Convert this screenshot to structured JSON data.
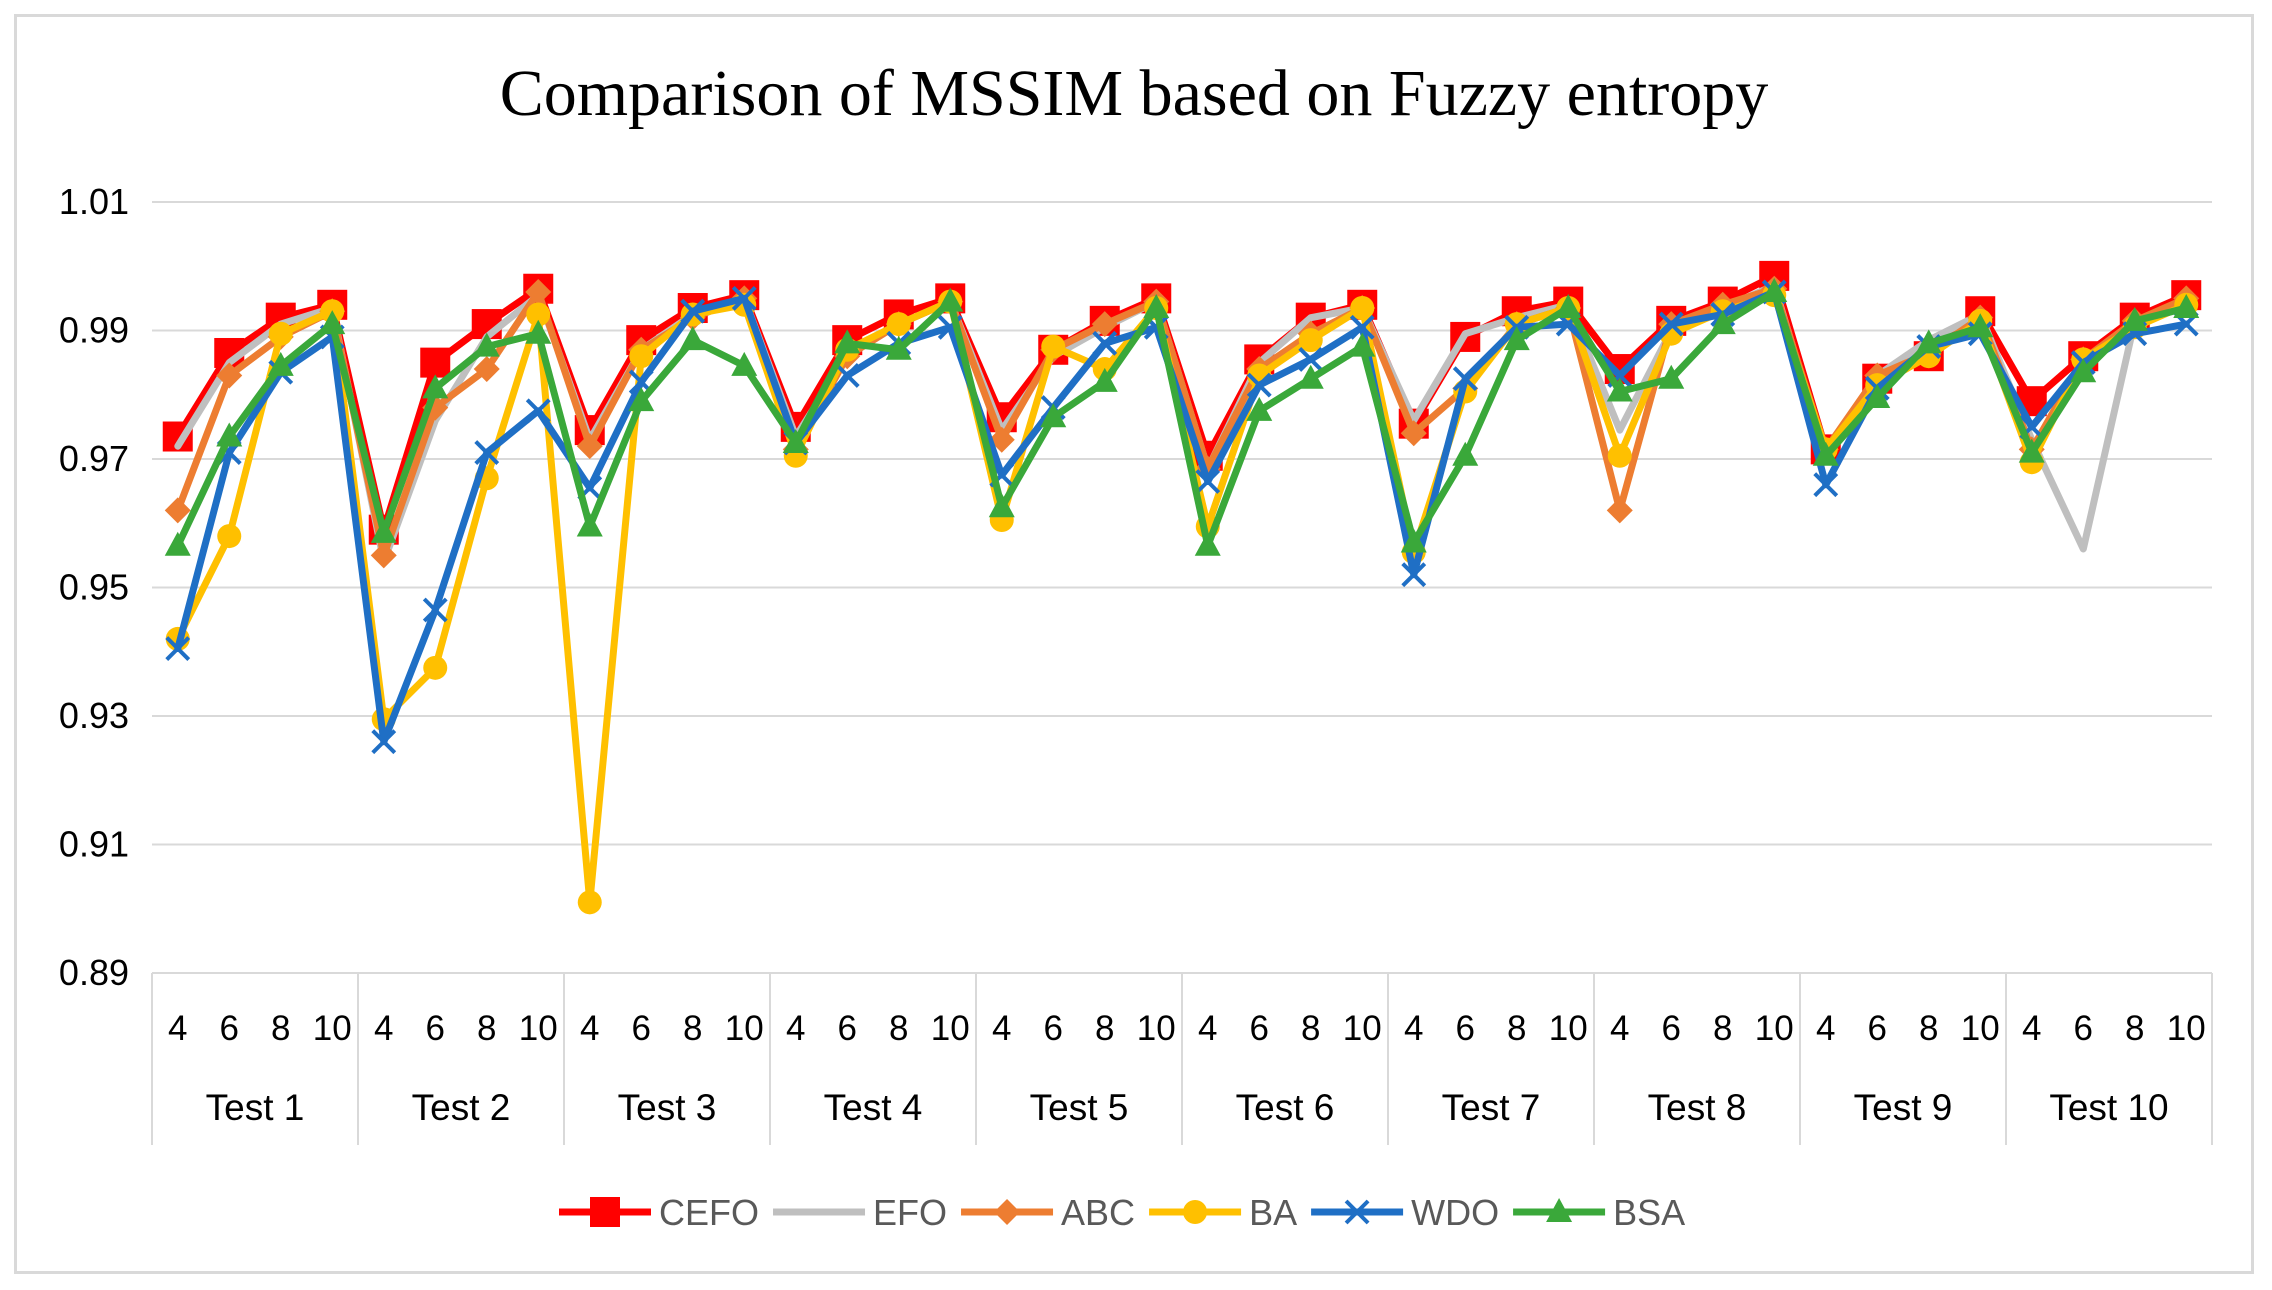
{
  "chart_data": {
    "type": "line",
    "title": "Comparison of MSSIM based on Fuzzy entropy",
    "xlabel": "",
    "ylabel": "",
    "ylim": [
      0.89,
      1.01
    ],
    "yticks": [
      "1.01",
      "0.99",
      "0.97",
      "0.95",
      "0.93",
      "0.91",
      "0.89"
    ],
    "yticks_values": [
      1.01,
      0.99,
      0.97,
      0.95,
      0.93,
      0.91,
      0.89
    ],
    "grid": true,
    "legend_position": "bottom",
    "groups": [
      "Test 1",
      "Test 2",
      "Test 3",
      "Test 4",
      "Test 5",
      "Test 6",
      "Test 7",
      "Test 8",
      "Test 9",
      "Test 10"
    ],
    "sub_categories": [
      "4",
      "6",
      "8",
      "10"
    ],
    "series": [
      {
        "name": "CEFO",
        "color": "#ff0000",
        "marker": "square",
        "values": [
          0.9735,
          0.9865,
          0.992,
          0.994,
          0.959,
          0.985,
          0.991,
          0.9965,
          0.9745,
          0.9885,
          0.9935,
          0.9955,
          0.975,
          0.9885,
          0.9925,
          0.995,
          0.9765,
          0.987,
          0.9915,
          0.995,
          0.9705,
          0.9855,
          0.992,
          0.994,
          0.9755,
          0.989,
          0.993,
          0.9945,
          0.984,
          0.9915,
          0.9945,
          0.9985,
          0.9715,
          0.9825,
          0.986,
          0.993,
          0.979,
          0.986,
          0.992,
          0.9955
        ]
      },
      {
        "name": "EFO",
        "color": "#bfbfbf",
        "marker": "none",
        "values": [
          0.972,
          0.985,
          0.991,
          0.9935,
          0.954,
          0.976,
          0.989,
          0.9955,
          0.973,
          0.987,
          0.9925,
          0.995,
          0.9735,
          0.986,
          0.991,
          0.9945,
          0.9745,
          0.986,
          0.9905,
          0.9945,
          0.9685,
          0.985,
          0.992,
          0.9935,
          0.976,
          0.9895,
          0.992,
          0.994,
          0.9745,
          0.99,
          0.9935,
          0.997,
          0.9705,
          0.983,
          0.9885,
          0.9925,
          0.973,
          0.956,
          0.9915,
          0.9945
        ]
      },
      {
        "name": "ABC",
        "color": "#ed7d31",
        "marker": "diamond",
        "values": [
          0.962,
          0.983,
          0.989,
          0.993,
          0.955,
          0.978,
          0.984,
          0.996,
          0.972,
          0.987,
          0.992,
          0.995,
          0.9715,
          0.986,
          0.991,
          0.9945,
          0.973,
          0.987,
          0.991,
          0.9945,
          0.9685,
          0.984,
          0.9895,
          0.9935,
          0.974,
          0.981,
          0.991,
          0.9935,
          0.962,
          0.991,
          0.994,
          0.9965,
          0.9715,
          0.983,
          0.9865,
          0.992,
          0.9715,
          0.9855,
          0.9915,
          0.995
        ]
      },
      {
        "name": "BA",
        "color": "#ffc000",
        "marker": "circle",
        "values": [
          0.942,
          0.958,
          0.9895,
          0.993,
          0.9295,
          0.9375,
          0.967,
          0.9925,
          0.901,
          0.986,
          0.9925,
          0.994,
          0.9705,
          0.987,
          0.991,
          0.9945,
          0.9605,
          0.9875,
          0.984,
          0.9935,
          0.9595,
          0.983,
          0.9885,
          0.9935,
          0.9555,
          0.9805,
          0.991,
          0.9935,
          0.9705,
          0.9895,
          0.993,
          0.9955,
          0.9715,
          0.9815,
          0.986,
          0.9915,
          0.9695,
          0.9855,
          0.9905,
          0.994
        ]
      },
      {
        "name": "WDO",
        "color": "#1f6fc5",
        "marker": "x",
        "values": [
          0.9405,
          0.971,
          0.9835,
          0.989,
          0.926,
          0.9465,
          0.971,
          0.9775,
          0.9655,
          0.982,
          0.993,
          0.995,
          0.9725,
          0.983,
          0.988,
          0.9905,
          0.9675,
          0.978,
          0.988,
          0.9905,
          0.9665,
          0.9815,
          0.9855,
          0.9905,
          0.952,
          0.9825,
          0.9905,
          0.991,
          0.983,
          0.991,
          0.9925,
          0.996,
          0.966,
          0.981,
          0.9875,
          0.9895,
          0.975,
          0.985,
          0.9895,
          0.991
        ]
      },
      {
        "name": "BSA",
        "color": "#3aa83a",
        "marker": "triangle",
        "values": [
          0.9565,
          0.9735,
          0.9845,
          0.991,
          0.9585,
          0.981,
          0.9875,
          0.9895,
          0.9595,
          0.979,
          0.9885,
          0.9845,
          0.9725,
          0.988,
          0.987,
          0.9945,
          0.9625,
          0.9765,
          0.982,
          0.9935,
          0.9565,
          0.9775,
          0.9825,
          0.9875,
          0.957,
          0.9705,
          0.9885,
          0.9935,
          0.9805,
          0.9825,
          0.991,
          0.996,
          0.9705,
          0.9795,
          0.988,
          0.9905,
          0.971,
          0.9835,
          0.9915,
          0.9935
        ]
      }
    ]
  }
}
